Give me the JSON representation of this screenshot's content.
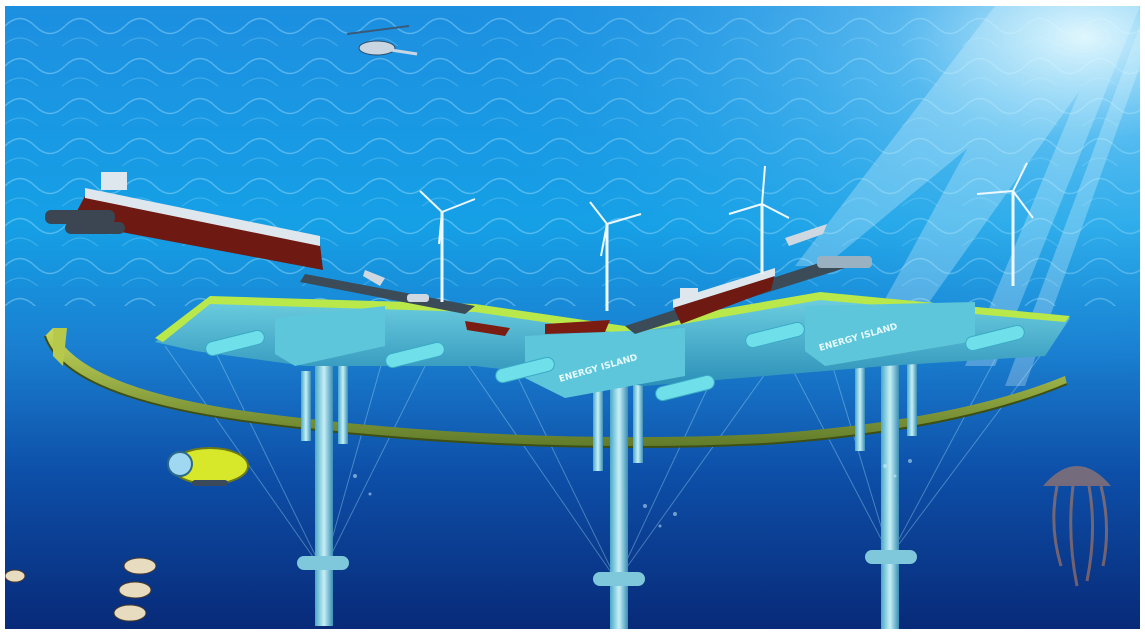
{
  "scene": {
    "labels": {
      "island_center": "ENERGY ISLAND",
      "island_right": "ENERGY ISLAND"
    }
  },
  "colors": {
    "water_deep": "#0a2a7a",
    "water_mid": "#0f66c0",
    "water_surface": "#1fa0e8",
    "platform_top": "#8fe0e8",
    "platform_edge": "#b9e84a",
    "hull_red": "#6e1a12",
    "submersible": "#d7e82a"
  }
}
